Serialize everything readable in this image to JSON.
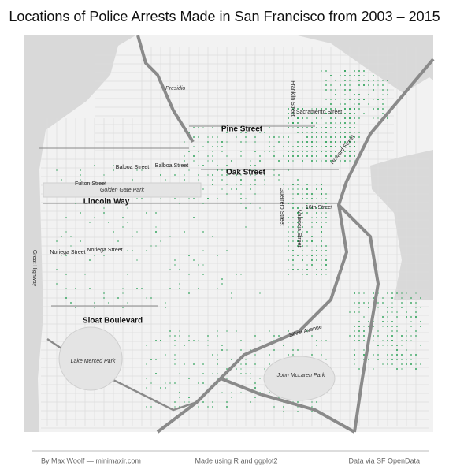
{
  "title": "Locations of Police Arrests Made in San Francisco from 2003 – 2015",
  "map": {
    "labels": [
      "Presidio",
      "Franklin Street",
      "Sacramento Street",
      "Pine Street",
      "Howard Street",
      "Balboa Street",
      "Balboa Street",
      "Oak Street",
      "Fulton Street",
      "Golden Gate Park",
      "Lincoln Way",
      "Guerrero Street",
      "Valencia Street",
      "16th Street",
      "Noriega Street",
      "Noriega Street",
      "Great Highway",
      "Sloat Boulevard",
      "Silver Avenue",
      "Lake Merced Park",
      "John McLaren Park"
    ]
  },
  "footer": {
    "left": "By Max Woolf — minimaxir.com",
    "center": "Made using R and ggplot2",
    "right": "Data via SF OpenData"
  }
}
